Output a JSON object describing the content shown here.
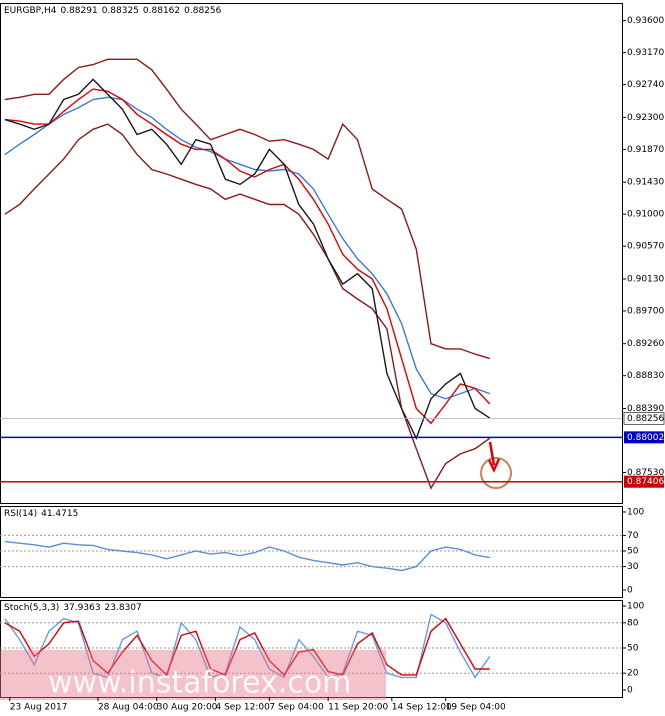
{
  "chart_data": [
    {
      "type": "line",
      "title": "EURGBP,H4",
      "header_values": [
        0.88291,
        0.88325,
        0.88162,
        0.88256
      ],
      "x": [
        0,
        3,
        6,
        9,
        12,
        15,
        18,
        21,
        24,
        27,
        30,
        33,
        36,
        39,
        42,
        45,
        48,
        51,
        54,
        57,
        60,
        63,
        66,
        69,
        72,
        75,
        78,
        81,
        84,
        87,
        90,
        93,
        96,
        99
      ],
      "xlim": [
        -1,
        126
      ],
      "xticks": [
        {
          "value": 1,
          "label": "23 Aug 2017"
        },
        {
          "value": 19,
          "label": "28 Aug 04:00"
        },
        {
          "value": 31,
          "label": "30 Aug 20:00"
        },
        {
          "value": 43,
          "label": "4 Sep 12:00"
        },
        {
          "value": 54,
          "label": "7 Sep 04:00"
        },
        {
          "value": 66,
          "label": "11 Sep 20:00"
        },
        {
          "value": 79,
          "label": "14 Sep 12:00"
        },
        {
          "value": 90,
          "label": "19 Sep 04:00"
        }
      ],
      "ylim": [
        0.8712,
        0.9381
      ],
      "yticks": [
        {
          "value": 0.936,
          "label": "0.93600"
        },
        {
          "value": 0.9317,
          "label": "0.93170"
        },
        {
          "value": 0.9274,
          "label": "0.92740"
        },
        {
          "value": 0.923,
          "label": "0.92300"
        },
        {
          "value": 0.9187,
          "label": "0.91870"
        },
        {
          "value": 0.9143,
          "label": "0.91430"
        },
        {
          "value": 0.91,
          "label": "0.91000"
        },
        {
          "value": 0.9057,
          "label": "0.90570"
        },
        {
          "value": 0.9013,
          "label": "0.90130"
        },
        {
          "value": 0.897,
          "label": "0.89700"
        },
        {
          "value": 0.8926,
          "label": "0.89260"
        },
        {
          "value": 0.8883,
          "label": "0.88830"
        },
        {
          "value": 0.8839,
          "label": "0.88390"
        },
        {
          "value": 0.8753,
          "label": "0.87530"
        }
      ],
      "series": [
        {
          "color": "#8b1a1a",
          "values": [
            0.9254,
            0.9257,
            0.9261,
            0.9261,
            0.9281,
            0.9297,
            0.9301,
            0.9308,
            0.9308,
            0.9308,
            0.9294,
            0.9268,
            0.9241,
            0.9221,
            0.92,
            0.9207,
            0.9214,
            0.9207,
            0.9198,
            0.92,
            0.9194,
            0.9187,
            0.9174,
            0.9221,
            0.92,
            0.9134,
            0.912,
            0.9107,
            0.9053,
            0.8926,
            0.8919,
            0.8919,
            0.8912,
            0.8906
          ]
        },
        {
          "color": "#8b1a1a",
          "values": [
            0.91,
            0.9113,
            0.9134,
            0.9154,
            0.9174,
            0.92,
            0.9214,
            0.9221,
            0.9207,
            0.918,
            0.916,
            0.9154,
            0.9147,
            0.914,
            0.9134,
            0.912,
            0.9127,
            0.912,
            0.9113,
            0.9113,
            0.91,
            0.9073,
            0.904,
            0.9,
            0.8986,
            0.8973,
            0.8946,
            0.8839,
            0.8785,
            0.8732,
            0.8765,
            0.8778,
            0.8785,
            0.8799
          ]
        },
        {
          "color": "#3a7bd5",
          "values": [
            0.918,
            0.9194,
            0.9207,
            0.9221,
            0.9234,
            0.9243,
            0.9254,
            0.9257,
            0.9254,
            0.9241,
            0.923,
            0.9214,
            0.92,
            0.919,
            0.9184,
            0.9174,
            0.9167,
            0.916,
            0.9158,
            0.916,
            0.9154,
            0.9134,
            0.91,
            0.9067,
            0.904,
            0.902,
            0.8993,
            0.8953,
            0.8892,
            0.8859,
            0.8852,
            0.8859,
            0.8866,
            0.8859
          ]
        },
        {
          "color": "#e00000",
          "values": [
            0.9227,
            0.9225,
            0.9221,
            0.9221,
            0.9238,
            0.9254,
            0.9268,
            0.9265,
            0.9254,
            0.9234,
            0.9221,
            0.9207,
            0.9194,
            0.9187,
            0.9187,
            0.9174,
            0.9158,
            0.915,
            0.916,
            0.9167,
            0.9147,
            0.912,
            0.9087,
            0.9046,
            0.9026,
            0.9013,
            0.8973,
            0.8906,
            0.8839,
            0.8819,
            0.8845,
            0.8872,
            0.8866,
            0.8845
          ]
        },
        {
          "color": "#1a1a1a",
          "values": [
            0.9227,
            0.9221,
            0.9214,
            0.9221,
            0.9254,
            0.9261,
            0.9281,
            0.9261,
            0.9241,
            0.9207,
            0.9214,
            0.9194,
            0.9167,
            0.92,
            0.9194,
            0.9147,
            0.914,
            0.9154,
            0.9187,
            0.9167,
            0.9113,
            0.9087,
            0.904,
            0.9006,
            0.902,
            0.9,
            0.8886,
            0.8839,
            0.8799,
            0.8852,
            0.8872,
            0.8886,
            0.8839,
            0.8826
          ]
        }
      ],
      "hlines": [
        {
          "value": 0.88002,
          "color": "#0000cc"
        },
        {
          "value": 0.87406,
          "color": "#cc0000"
        }
      ]
    },
    {
      "type": "line",
      "title": "RSI(14)",
      "header_values": [
        41.4715
      ],
      "ylim": [
        0,
        100
      ],
      "yticks": [
        100,
        70,
        50,
        30,
        0
      ],
      "series": [
        {
          "color": "#5b8fd6",
          "values": [
            62,
            60,
            58,
            55,
            60,
            58,
            57,
            52,
            50,
            48,
            45,
            40,
            45,
            50,
            46,
            48,
            44,
            48,
            55,
            50,
            42,
            38,
            35,
            32,
            35,
            30,
            28,
            25,
            30,
            50,
            55,
            52,
            45,
            41.5
          ]
        }
      ]
    },
    {
      "type": "line",
      "title": "Stoch(5,3,3)",
      "header_values": [
        37.9363,
        23.8307
      ],
      "ylim": [
        0,
        100
      ],
      "yticks": [
        100,
        80,
        50,
        20,
        0
      ],
      "series": [
        {
          "color": "#6a9be0",
          "values": [
            85,
            60,
            30,
            70,
            85,
            80,
            20,
            15,
            60,
            70,
            20,
            15,
            80,
            60,
            15,
            20,
            75,
            60,
            25,
            15,
            60,
            40,
            15,
            20,
            70,
            65,
            20,
            15,
            15,
            90,
            80,
            45,
            15,
            40
          ]
        },
        {
          "color": "#e00000",
          "values": [
            80,
            70,
            40,
            55,
            80,
            82,
            35,
            20,
            45,
            65,
            35,
            18,
            65,
            70,
            25,
            18,
            60,
            68,
            35,
            18,
            45,
            48,
            22,
            18,
            55,
            68,
            30,
            18,
            18,
            70,
            85,
            55,
            25,
            25
          ]
        }
      ]
    },
    {
      "type": "watermark",
      "title": "www.instaforex.com"
    }
  ]
}
